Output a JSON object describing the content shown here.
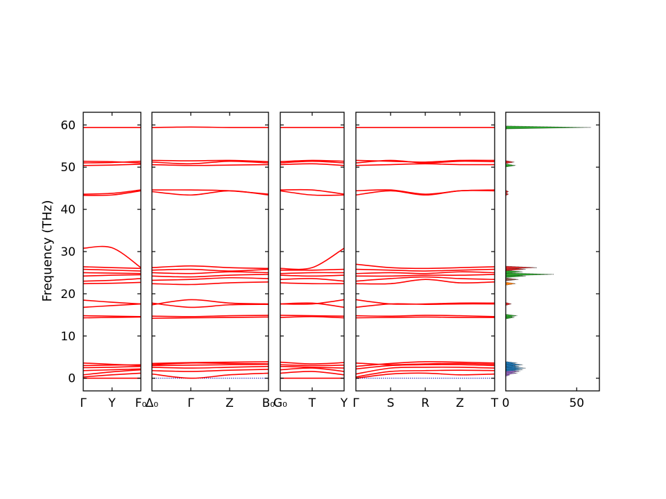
{
  "chart_data": {
    "type": "line",
    "ylabel": "Frequency (THz)",
    "ylim": [
      -3,
      63
    ],
    "yticks": [
      0,
      10,
      20,
      30,
      40,
      50,
      60
    ],
    "line_color": "#ff0000",
    "zero_line_color": "#0000aa",
    "panels": [
      {
        "id": "p1",
        "xticks": [
          "Γ",
          "Y",
          "F₀"
        ],
        "bands": [
          {
            "y": [
              0,
              0,
              0
            ]
          },
          {
            "y": [
              0.3,
              0.8,
              1.2
            ]
          },
          {
            "y": [
              0.8,
              1.5,
              2.0
            ]
          },
          {
            "y": [
              1.8,
              2.0,
              2.2
            ]
          },
          {
            "y": [
              2.5,
              2.6,
              2.8
            ]
          },
          {
            "y": [
              3.0,
              3.1,
              3.2
            ]
          },
          {
            "y": [
              3.6,
              3.3,
              3.0
            ]
          },
          {
            "y": [
              14.3,
              14.4,
              14.5
            ]
          },
          {
            "y": [
              14.8,
              14.7,
              14.6
            ]
          },
          {
            "y": [
              16.8,
              17.2,
              17.6
            ]
          },
          {
            "y": [
              18.5,
              18.0,
              17.6
            ]
          },
          {
            "y": [
              22.4,
              22.5,
              22.7
            ]
          },
          {
            "y": [
              23.0,
              23.2,
              23.6
            ]
          },
          {
            "y": [
              24.2,
              24.4,
              24.5
            ]
          },
          {
            "y": [
              25.0,
              24.9,
              24.8
            ]
          },
          {
            "y": [
              25.8,
              25.6,
              25.4
            ]
          },
          {
            "y": [
              26.4,
              26.2,
              26.0
            ]
          },
          {
            "y": [
              30.8,
              30.9,
              26.2
            ]
          },
          {
            "y": [
              43.3,
              43.4,
              44.4
            ]
          },
          {
            "y": [
              43.6,
              43.8,
              44.6
            ]
          },
          {
            "y": [
              50.4,
              50.5,
              50.7
            ]
          },
          {
            "y": [
              51.0,
              51.1,
              51.4
            ]
          },
          {
            "y": [
              51.4,
              51.3,
              51.0
            ]
          },
          {
            "y": [
              59.4,
              59.4,
              59.4
            ]
          }
        ]
      },
      {
        "id": "p2",
        "xticks": [
          "Δ₀",
          "Γ",
          "Z",
          "B₀"
        ],
        "bands": [
          {
            "y": [
              1.0,
              0.0,
              0.8,
              1.2
            ]
          },
          {
            "y": [
              1.8,
              1.6,
              1.9,
              2.1
            ]
          },
          {
            "y": [
              2.6,
              2.4,
              2.6,
              2.8
            ]
          },
          {
            "y": [
              3.0,
              3.1,
              3.2,
              3.3
            ]
          },
          {
            "y": [
              3.5,
              3.7,
              3.8,
              3.9
            ]
          },
          {
            "y": [
              3.2,
              3.6,
              3.5,
              3.4
            ]
          },
          {
            "y": [
              14.2,
              14.3,
              14.4,
              14.5
            ]
          },
          {
            "y": [
              14.7,
              14.6,
              14.8,
              14.9
            ]
          },
          {
            "y": [
              17.8,
              16.8,
              17.4,
              17.5
            ]
          },
          {
            "y": [
              17.4,
              18.6,
              17.8,
              17.6
            ]
          },
          {
            "y": [
              22.4,
              22.2,
              22.6,
              22.8
            ]
          },
          {
            "y": [
              23.2,
              23.4,
              23.8,
              23.6
            ]
          },
          {
            "y": [
              24.2,
              24.0,
              24.4,
              24.6
            ]
          },
          {
            "y": [
              25.0,
              24.8,
              25.2,
              25.0
            ]
          },
          {
            "y": [
              25.6,
              25.8,
              25.4,
              25.8
            ]
          },
          {
            "y": [
              26.2,
              26.6,
              26.2,
              26.0
            ]
          },
          {
            "y": [
              44.2,
              43.4,
              44.4,
              43.4
            ]
          },
          {
            "y": [
              44.6,
              44.6,
              44.4,
              43.6
            ]
          },
          {
            "y": [
              50.6,
              50.4,
              50.5,
              50.6
            ]
          },
          {
            "y": [
              51.2,
              50.8,
              51.4,
              51.0
            ]
          },
          {
            "y": [
              51.6,
              51.5,
              51.6,
              51.3
            ]
          },
          {
            "y": [
              59.4,
              59.5,
              59.4,
              59.4
            ]
          }
        ]
      },
      {
        "id": "p3",
        "xticks": [
          "G₀",
          "T",
          "Y"
        ],
        "bands": [
          {
            "y": [
              0,
              0,
              0
            ]
          },
          {
            "y": [
              1.2,
              1.6,
              0.8
            ]
          },
          {
            "y": [
              2.0,
              2.4,
              1.6
            ]
          },
          {
            "y": [
              2.8,
              2.6,
              2.4
            ]
          },
          {
            "y": [
              3.2,
              3.0,
              3.1
            ]
          },
          {
            "y": [
              3.8,
              3.4,
              3.7
            ]
          },
          {
            "y": [
              14.4,
              14.6,
              14.3
            ]
          },
          {
            "y": [
              14.9,
              14.8,
              14.7
            ]
          },
          {
            "y": [
              17.6,
              17.8,
              16.8
            ]
          },
          {
            "y": [
              17.6,
              17.6,
              18.6
            ]
          },
          {
            "y": [
              22.6,
              22.4,
              22.4
            ]
          },
          {
            "y": [
              23.4,
              23.6,
              23.0
            ]
          },
          {
            "y": [
              24.4,
              24.2,
              24.4
            ]
          },
          {
            "y": [
              24.8,
              25.0,
              25.0
            ]
          },
          {
            "y": [
              25.6,
              25.6,
              25.8
            ]
          },
          {
            "y": [
              26.0,
              26.2,
              30.8
            ]
          },
          {
            "y": [
              44.4,
              43.4,
              43.4
            ]
          },
          {
            "y": [
              44.6,
              44.6,
              43.6
            ]
          },
          {
            "y": [
              50.6,
              50.8,
              50.4
            ]
          },
          {
            "y": [
              51.0,
              51.4,
              51.0
            ]
          },
          {
            "y": [
              51.3,
              51.6,
              51.4
            ]
          },
          {
            "y": [
              59.4,
              59.4,
              59.4
            ]
          }
        ]
      },
      {
        "id": "p4",
        "xticks": [
          "Γ",
          "S",
          "R",
          "Z",
          "T"
        ],
        "bands": [
          {
            "y": [
              0,
              1.0,
              1.2,
              0.8,
              1.0
            ]
          },
          {
            "y": [
              0.3,
              1.6,
              1.8,
              1.9,
              1.8
            ]
          },
          {
            "y": [
              1.0,
              2.4,
              2.6,
              2.6,
              2.4
            ]
          },
          {
            "y": [
              2.2,
              3.0,
              3.2,
              3.2,
              3.0
            ]
          },
          {
            "y": [
              2.8,
              3.5,
              3.9,
              3.8,
              3.6
            ]
          },
          {
            "y": [
              3.6,
              3.2,
              3.4,
              3.5,
              3.3
            ]
          },
          {
            "y": [
              14.3,
              14.4,
              14.5,
              14.4,
              14.4
            ]
          },
          {
            "y": [
              14.8,
              14.7,
              14.9,
              14.8,
              14.6
            ]
          },
          {
            "y": [
              16.8,
              17.6,
              17.5,
              17.6,
              17.6
            ]
          },
          {
            "y": [
              18.6,
              17.6,
              17.6,
              17.8,
              17.8
            ]
          },
          {
            "y": [
              22.4,
              22.4,
              23.4,
              22.6,
              22.8
            ]
          },
          {
            "y": [
              23.0,
              23.6,
              24.0,
              23.6,
              23.4
            ]
          },
          {
            "y": [
              24.2,
              24.2,
              24.4,
              24.4,
              24.6
            ]
          },
          {
            "y": [
              24.8,
              25.0,
              24.8,
              25.2,
              25.0
            ]
          },
          {
            "y": [
              25.8,
              25.6,
              25.4,
              25.6,
              25.8
            ]
          },
          {
            "y": [
              27.0,
              26.2,
              26.0,
              26.2,
              26.4
            ]
          },
          {
            "y": [
              43.4,
              44.4,
              43.4,
              44.4,
              44.4
            ]
          },
          {
            "y": [
              44.4,
              44.6,
              43.6,
              44.4,
              44.6
            ]
          },
          {
            "y": [
              50.4,
              50.6,
              50.8,
              50.6,
              50.6
            ]
          },
          {
            "y": [
              51.0,
              51.6,
              51.0,
              51.4,
              51.3
            ]
          },
          {
            "y": [
              51.6,
              51.4,
              51.2,
              51.6,
              51.6
            ]
          },
          {
            "y": [
              59.4,
              59.4,
              59.4,
              59.4,
              59.4
            ]
          }
        ]
      }
    ],
    "dos": {
      "xlim": [
        0,
        66
      ],
      "xticks": [
        0,
        50
      ],
      "peaks": [
        {
          "f": 0.8,
          "v": 3,
          "color": "#9467bd"
        },
        {
          "f": 1.2,
          "v": 8,
          "color": "#9467bd"
        },
        {
          "f": 1.6,
          "v": 10,
          "color": "#9467bd"
        },
        {
          "f": 2.0,
          "v": 12,
          "color": "#1f77b4"
        },
        {
          "f": 2.4,
          "v": 14,
          "color": "#1f77b4"
        },
        {
          "f": 2.8,
          "v": 10,
          "color": "#1f77b4"
        },
        {
          "f": 3.2,
          "v": 12,
          "color": "#1f77b4"
        },
        {
          "f": 3.6,
          "v": 8,
          "color": "#1f77b4"
        },
        {
          "f": 14.4,
          "v": 6,
          "color": "#2ca02c"
        },
        {
          "f": 14.8,
          "v": 8,
          "color": "#2ca02c"
        },
        {
          "f": 17.6,
          "v": 4,
          "color": "#d62728"
        },
        {
          "f": 22.4,
          "v": 7,
          "color": "#ff7f0e"
        },
        {
          "f": 23.4,
          "v": 9,
          "color": "#8c564b"
        },
        {
          "f": 24.2,
          "v": 14,
          "color": "#2ca02c"
        },
        {
          "f": 24.6,
          "v": 34,
          "color": "#2ca02c"
        },
        {
          "f": 25.2,
          "v": 12,
          "color": "#2ca02c"
        },
        {
          "f": 25.8,
          "v": 14,
          "color": "#d62728"
        },
        {
          "f": 26.2,
          "v": 22,
          "color": "#d62728"
        },
        {
          "f": 43.6,
          "v": 2,
          "color": "#d62728"
        },
        {
          "f": 44.2,
          "v": 2,
          "color": "#d62728"
        },
        {
          "f": 50.4,
          "v": 7,
          "color": "#2ca02c"
        },
        {
          "f": 51.2,
          "v": 6,
          "color": "#d62728"
        },
        {
          "f": 59.4,
          "v": 60,
          "color": "#2ca02c"
        }
      ]
    }
  }
}
